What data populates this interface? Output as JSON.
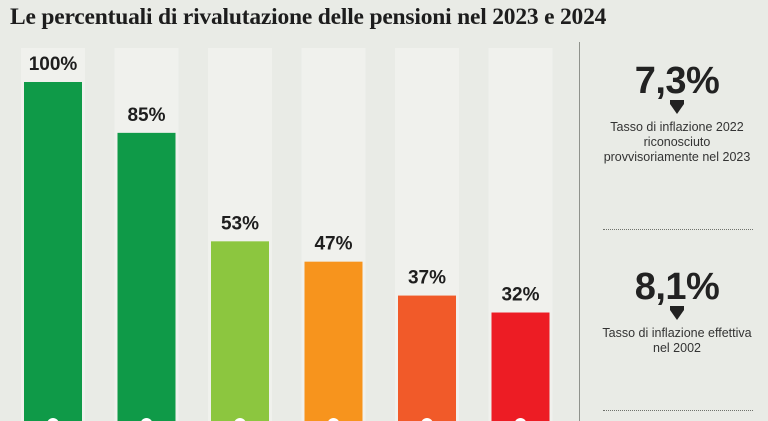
{
  "chart_data": {
    "type": "bar",
    "title": "Le percentuali di rivalutazione delle pensioni nel 2023 e 2024",
    "categories": [
      "",
      "",
      "",
      "",
      "",
      ""
    ],
    "values": [
      100,
      85,
      53,
      47,
      37,
      32
    ],
    "value_labels": [
      "100%",
      "85%",
      "53%",
      "47%",
      "37%",
      "32%"
    ],
    "colors": [
      "#0f9a48",
      "#0f9a48",
      "#8cc63f",
      "#f7941d",
      "#f15a29",
      "#ed1c24"
    ],
    "ylim": [
      0,
      100
    ],
    "grid": false,
    "legend": "none"
  },
  "side_panel": {
    "stat1": {
      "value": "7,3%",
      "caption": "Tasso di inflazione 2022 riconosciuto provvisoriamente nel 2023"
    },
    "stat2": {
      "value": "8,1%",
      "caption": "Tasso di inflazione effettiva nel 2002"
    }
  }
}
